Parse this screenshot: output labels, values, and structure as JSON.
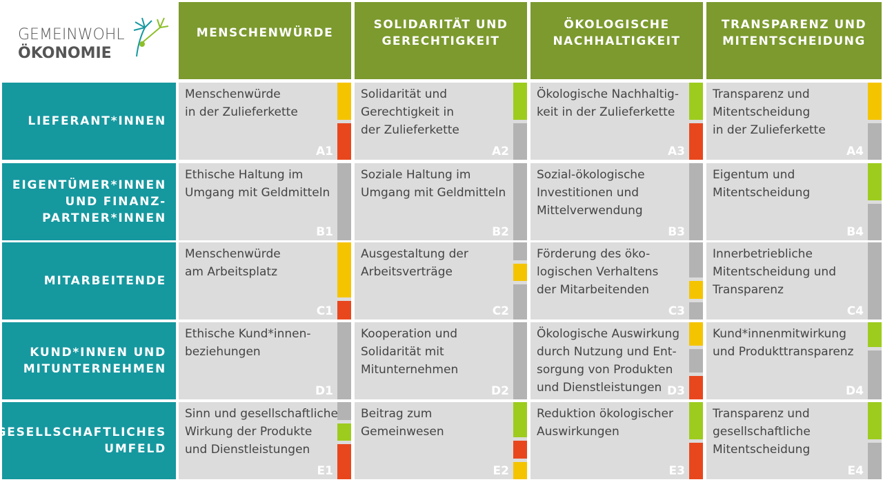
{
  "logo": {
    "line1": "GEMEINWOHL",
    "line2": "ÖKONOMIE"
  },
  "columns": [
    "MENSCHENWÜRDE",
    "SOLIDARITÄT UND\nGERECHTIGKEIT",
    "ÖKOLOGISCHE\nNACHHALTIGKEIT",
    "TRANSPARENZ UND\nMITENTSCHEIDUNG"
  ],
  "rows": [
    {
      "label": "LIEFERANT*INNEN",
      "cells": [
        {
          "text": "Menschenwürde\nin der Zulieferkette",
          "code": "A1"
        },
        {
          "text": "Solidarität und\nGerechtigkeit in\nder Zulieferkette",
          "code": "A2"
        },
        {
          "text": "Ökologische Nachhaltig-\nkeit in der Zulieferkette",
          "code": "A3"
        },
        {
          "text": "Transparenz und\nMitentscheidung\nin der Zulieferkette",
          "code": "A4"
        }
      ]
    },
    {
      "label": "EIGENTÜMER*INNEN\nUND FINANZ-\nPARTNER*INNEN",
      "cells": [
        {
          "text": "Ethische Haltung im\nUmgang mit Geldmitteln",
          "code": "B1"
        },
        {
          "text": "Soziale Haltung im\nUmgang mit Geldmitteln",
          "code": "B2"
        },
        {
          "text": "Sozial-ökologische\nInvestitionen und\nMittelverwendung",
          "code": "B3"
        },
        {
          "text": "Eigentum und\nMitentscheidung",
          "code": "B4"
        }
      ]
    },
    {
      "label": "MITARBEITENDE",
      "cells": [
        {
          "text": "Menschenwürde\nam Arbeitsplatz",
          "code": "C1"
        },
        {
          "text": "Ausgestaltung der\nArbeitsverträge",
          "code": "C2"
        },
        {
          "text": "Förderung des öko-\nlogischen Verhaltens\nder Mitarbeitenden",
          "code": "C3"
        },
        {
          "text": "Innerbetriebliche\nMitentscheidung und\nTransparenz",
          "code": "C4"
        }
      ]
    },
    {
      "label": "KUND*INNEN UND\nMITUNTERNEHMEN",
      "cells": [
        {
          "text": "Ethische Kund*innen-\nbeziehungen",
          "code": "D1"
        },
        {
          "text": "Kooperation und\nSolidarität mit\nMitunternehmen",
          "code": "D2"
        },
        {
          "text": "Ökologische Auswirkung\ndurch Nutzung und Ent-\nsorgung von Produkten\nund Dienstleistungen",
          "code": "D3"
        },
        {
          "text": "Kund*innenmitwirkung\nund Produkttransparenz",
          "code": "D4"
        }
      ]
    },
    {
      "label": "GESELLSCHAFTLICHES\nUMFELD",
      "cells": [
        {
          "text": "Sinn und gesellschaftliche\nWirkung der Produkte\nund Dienstleistungen",
          "code": "E1"
        },
        {
          "text": "Beitrag zum\nGemeinwesen",
          "code": "E2"
        },
        {
          "text": "Reduktion ökologischer\nAuswirkungen",
          "code": "E3"
        },
        {
          "text": "Transparenz und\ngesellschaftliche\nMitentscheidung",
          "code": "E4"
        }
      ]
    }
  ]
}
